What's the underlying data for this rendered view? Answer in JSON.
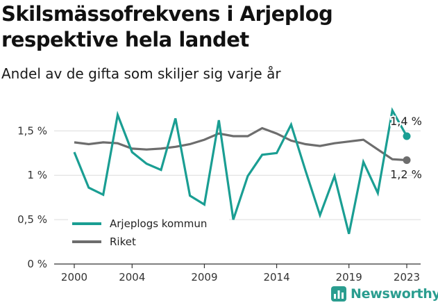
{
  "title": "Skilsmässofrekvens i Arjeplog respektive hela landet",
  "subtitle": "Andel av de gifta som skiljer sig varje år",
  "brand": "Newsworthy",
  "colors": {
    "arjeplog": "#1a9e93",
    "riket": "#6d6d6d",
    "grid": "#dcdcdc",
    "axis": "#333333"
  },
  "chart_data": {
    "type": "line",
    "x": [
      2000,
      2001,
      2002,
      2003,
      2004,
      2005,
      2006,
      2007,
      2008,
      2009,
      2010,
      2011,
      2012,
      2013,
      2014,
      2015,
      2016,
      2017,
      2018,
      2019,
      2020,
      2021,
      2022,
      2023
    ],
    "series": [
      {
        "name": "Arjeplogs kommun",
        "values": [
          1.26,
          0.86,
          0.78,
          1.68,
          1.26,
          1.13,
          1.06,
          1.64,
          0.77,
          0.67,
          1.62,
          0.5,
          0.99,
          1.23,
          1.25,
          1.57,
          1.05,
          0.55,
          0.99,
          0.34,
          1.15,
          0.8,
          1.73,
          1.44
        ],
        "end_label": "1,4 %"
      },
      {
        "name": "Riket",
        "values": [
          1.37,
          1.35,
          1.37,
          1.36,
          1.3,
          1.29,
          1.3,
          1.32,
          1.35,
          1.4,
          1.47,
          1.44,
          1.44,
          1.53,
          1.47,
          1.39,
          1.35,
          1.33,
          1.36,
          1.38,
          1.4,
          1.29,
          1.18,
          1.17
        ],
        "end_label": "1,2 %"
      }
    ],
    "y_ticks": [
      "0 %",
      "0,5 %",
      "1 %",
      "1,5 %"
    ],
    "y_tick_values": [
      0,
      0.5,
      1,
      1.5
    ],
    "x_ticks": [
      "2000",
      "2004",
      "2009",
      "2014",
      "2019",
      "2023"
    ],
    "x_tick_values": [
      2000,
      2004,
      2009,
      2014,
      2019,
      2023
    ],
    "ylim": [
      0,
      1.8
    ],
    "xlim": [
      2000,
      2023
    ],
    "grid": true,
    "legend_position": "bottom-left"
  }
}
